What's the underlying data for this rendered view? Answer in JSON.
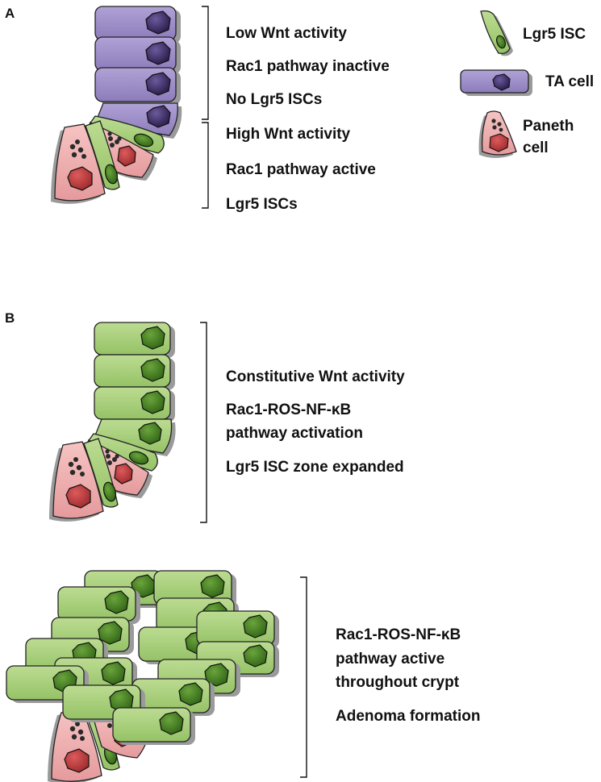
{
  "panels": {
    "a": {
      "letter": "A",
      "upper_zone": [
        "Low Wnt activity",
        "Rac1 pathway inactive",
        "No Lgr5 ISCs"
      ],
      "lower_zone": [
        "High Wnt activity",
        "Rac1 pathway active",
        "Lgr5 ISCs"
      ]
    },
    "b": {
      "letter": "B",
      "crypt_labels": [
        "Constitutive Wnt activity",
        "Rac1-ROS-NF-κB",
        "pathway activation",
        "Lgr5 ISC zone expanded"
      ],
      "adenoma_labels": [
        "Rac1-ROS-NF-κB",
        "pathway active",
        "throughout crypt",
        "Adenoma formation"
      ]
    }
  },
  "legend": {
    "lgr5": "Lgr5 ISC",
    "ta": "TA cell",
    "paneth_line1": "Paneth",
    "paneth_line2": "cell"
  },
  "colors": {
    "lgr5_fill": "#a6cd78",
    "lgr5_nucleus": "#3e7a1e",
    "ta_fill": "#9d8cc6",
    "ta_nucleus": "#3a2a63",
    "paneth_fill": "#efaeb0",
    "paneth_nucleus": "#b63a3c",
    "shadow": "#9a9a9a",
    "outline": "#222222"
  }
}
